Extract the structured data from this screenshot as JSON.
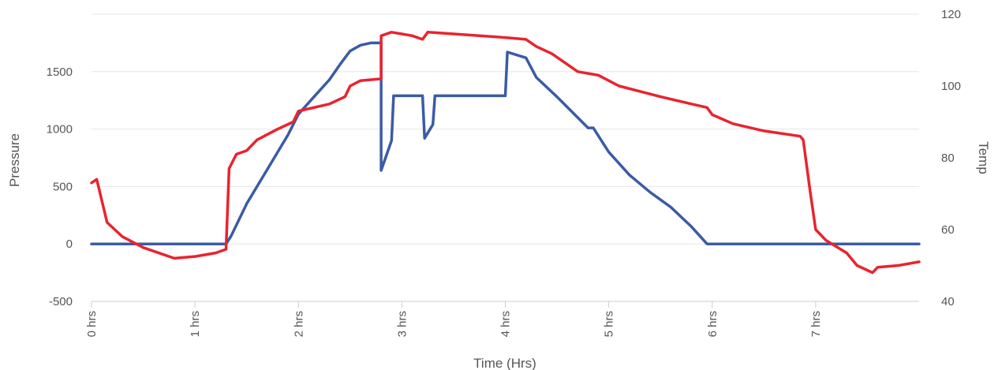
{
  "chart_data": {
    "type": "line",
    "xlabel": "Time (Hrs)",
    "ylabel": "Pressure",
    "y2label": "Temp",
    "x_unit": "hrs",
    "xlim": [
      0,
      8
    ],
    "ylim": [
      -500,
      2000
    ],
    "y2lim": [
      40,
      120
    ],
    "x_ticks": [
      {
        "value": 0,
        "label": "0 hrs"
      },
      {
        "value": 1,
        "label": "1 hrs"
      },
      {
        "value": 2,
        "label": "2 hrs"
      },
      {
        "value": 3,
        "label": "3 hrs"
      },
      {
        "value": 4,
        "label": "4 hrs"
      },
      {
        "value": 5,
        "label": "5 hrs"
      },
      {
        "value": 6,
        "label": "6 hrs"
      },
      {
        "value": 7,
        "label": "7 hrs"
      }
    ],
    "y_ticks": [
      {
        "value": -500,
        "label": "-500"
      },
      {
        "value": 0,
        "label": "0"
      },
      {
        "value": 500,
        "label": "500"
      },
      {
        "value": 1000,
        "label": "1000"
      },
      {
        "value": 1500,
        "label": "1500"
      }
    ],
    "y2_ticks": [
      {
        "value": 40,
        "label": "40"
      },
      {
        "value": 60,
        "label": "60"
      },
      {
        "value": 80,
        "label": "80"
      },
      {
        "value": 100,
        "label": "100"
      },
      {
        "value": 120,
        "label": "120"
      }
    ],
    "grid": true,
    "series": [
      {
        "color": "#3b5ba5",
        "axis": "left",
        "points": [
          [
            0,
            0
          ],
          [
            1.3,
            0
          ],
          [
            1.35,
            70
          ],
          [
            1.5,
            350
          ],
          [
            1.7,
            650
          ],
          [
            1.9,
            950
          ],
          [
            2.0,
            1130
          ],
          [
            2.15,
            1280
          ],
          [
            2.3,
            1430
          ],
          [
            2.4,
            1560
          ],
          [
            2.5,
            1680
          ],
          [
            2.6,
            1730
          ],
          [
            2.7,
            1750
          ],
          [
            2.8,
            1750
          ],
          [
            2.8,
            640
          ],
          [
            2.9,
            900
          ],
          [
            2.92,
            1290
          ],
          [
            3.2,
            1290
          ],
          [
            3.22,
            920
          ],
          [
            3.3,
            1040
          ],
          [
            3.32,
            1290
          ],
          [
            4.0,
            1290
          ],
          [
            4.02,
            1670
          ],
          [
            4.2,
            1620
          ],
          [
            4.3,
            1450
          ],
          [
            4.5,
            1280
          ],
          [
            4.7,
            1100
          ],
          [
            4.8,
            1010
          ],
          [
            4.85,
            1010
          ],
          [
            5.0,
            800
          ],
          [
            5.2,
            600
          ],
          [
            5.4,
            450
          ],
          [
            5.6,
            320
          ],
          [
            5.8,
            150
          ],
          [
            5.95,
            0
          ],
          [
            8.0,
            0
          ]
        ]
      },
      {
        "color": "#e8242f",
        "axis": "right",
        "points": [
          [
            0,
            73
          ],
          [
            0.05,
            74
          ],
          [
            0.15,
            62
          ],
          [
            0.3,
            58
          ],
          [
            0.5,
            55
          ],
          [
            0.8,
            52
          ],
          [
            1.0,
            52.5
          ],
          [
            1.2,
            53.5
          ],
          [
            1.3,
            54.5
          ],
          [
            1.33,
            77
          ],
          [
            1.4,
            81
          ],
          [
            1.5,
            82
          ],
          [
            1.6,
            85
          ],
          [
            1.8,
            88
          ],
          [
            1.95,
            90
          ],
          [
            2.0,
            93
          ],
          [
            2.3,
            95
          ],
          [
            2.45,
            97
          ],
          [
            2.5,
            100
          ],
          [
            2.6,
            101.5
          ],
          [
            2.8,
            102
          ],
          [
            2.8,
            114
          ],
          [
            2.9,
            115
          ],
          [
            3.1,
            114
          ],
          [
            3.2,
            113
          ],
          [
            3.25,
            115
          ],
          [
            3.5,
            114.5
          ],
          [
            4.0,
            113.5
          ],
          [
            4.2,
            113
          ],
          [
            4.3,
            111
          ],
          [
            4.45,
            109
          ],
          [
            4.6,
            106
          ],
          [
            4.7,
            104
          ],
          [
            4.9,
            103
          ],
          [
            5.1,
            100
          ],
          [
            5.3,
            98.5
          ],
          [
            5.5,
            97
          ],
          [
            5.8,
            95
          ],
          [
            5.95,
            94
          ],
          [
            6.0,
            92
          ],
          [
            6.2,
            89.5
          ],
          [
            6.5,
            87.5
          ],
          [
            6.85,
            86
          ],
          [
            6.88,
            85
          ],
          [
            6.95,
            70
          ],
          [
            7.0,
            60
          ],
          [
            7.1,
            57
          ],
          [
            7.3,
            53.5
          ],
          [
            7.4,
            50
          ],
          [
            7.55,
            48
          ],
          [
            7.6,
            49.5
          ],
          [
            7.8,
            50
          ],
          [
            8.0,
            51
          ]
        ]
      }
    ]
  }
}
